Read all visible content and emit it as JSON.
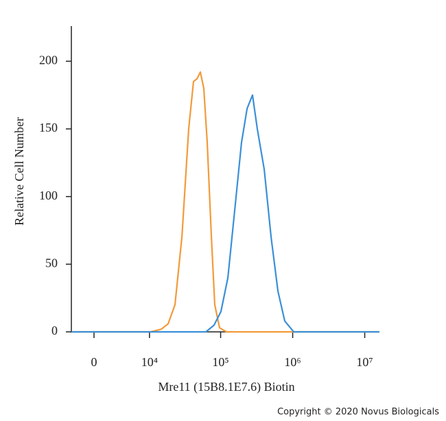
{
  "chart_data": {
    "type": "line",
    "xlabel": "Mre11 (15B8.1E7.6) Biotin",
    "ylabel": "Relative Cell Number",
    "credit": "Copyright © 2020 Novus Biologicals",
    "xscale": "logicle",
    "xlim": [
      -2760,
      16000000
    ],
    "xticks": [
      0,
      {
        "value": 10000,
        "label": "10⁴"
      },
      {
        "value": 100000,
        "label": "10⁵"
      },
      {
        "value": 1000000,
        "label": "10⁶"
      },
      {
        "value": 10000000,
        "label": "10⁷"
      }
    ],
    "ylim": [
      0,
      225
    ],
    "yticks": [
      0,
      50,
      100,
      150,
      200
    ],
    "series": [
      {
        "color": "#f29a3a",
        "x": [
          -2760,
          10500,
          14800,
          18500,
          23100,
          28900,
          36000,
          42000,
          46900,
          52300,
          58400,
          65200,
          74400,
          83000,
          96700,
          120500,
          16000000
        ],
        "values": [
          0,
          0,
          2,
          6,
          20,
          70,
          150,
          185,
          187,
          192,
          180,
          140,
          70,
          20,
          3,
          0,
          0
        ]
      },
      {
        "color": "#3a8fd8",
        "x": [
          -2760,
          62400,
          81200,
          101000,
          126000,
          157000,
          195000,
          233000,
          277000,
          323000,
          403000,
          502000,
          625000,
          777000,
          1034000,
          16000000
        ],
        "values": [
          0,
          0,
          5,
          15,
          40,
          90,
          140,
          165,
          175,
          150,
          120,
          70,
          30,
          8,
          0,
          0
        ]
      }
    ]
  }
}
